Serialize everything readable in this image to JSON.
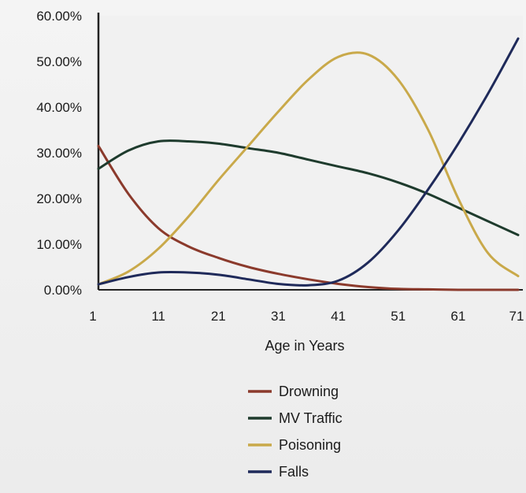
{
  "chart_data": {
    "type": "line",
    "title": "",
    "xlabel": "Age in Years",
    "ylabel": "",
    "x_ticks": [
      "1",
      "11",
      "21",
      "31",
      "41",
      "51",
      "61",
      "71"
    ],
    "y_ticks": [
      "0.00%",
      "10.00%",
      "20.00%",
      "30.00%",
      "40.00%",
      "50.00%",
      "60.00%"
    ],
    "xlim": [
      1,
      71
    ],
    "ylim": [
      0,
      60
    ],
    "grid": false,
    "legend_position": "bottom-center",
    "series": [
      {
        "name": "Drowning",
        "color": "#8b3a2c",
        "x": [
          1,
          6,
          11,
          16,
          21,
          26,
          31,
          36,
          41,
          46,
          51,
          56,
          61,
          66,
          71
        ],
        "y": [
          31.5,
          21,
          13.5,
          9.5,
          7,
          5,
          3.5,
          2.3,
          1.3,
          0.6,
          0.2,
          0.1,
          0,
          0,
          0
        ]
      },
      {
        "name": "MV Traffic",
        "color": "#1e3b2d",
        "x": [
          1,
          6,
          11,
          16,
          21,
          26,
          31,
          36,
          41,
          46,
          51,
          56,
          61,
          66,
          71
        ],
        "y": [
          26.5,
          30.5,
          32.5,
          32.5,
          32,
          31,
          30,
          28.5,
          27,
          25.5,
          23.5,
          21,
          18,
          15,
          12
        ]
      },
      {
        "name": "Poisoning",
        "color": "#c9a94a",
        "x": [
          1,
          6,
          11,
          16,
          21,
          26,
          31,
          36,
          41,
          46,
          51,
          56,
          61,
          66,
          71
        ],
        "y": [
          1.2,
          4,
          9,
          16,
          24,
          31.5,
          39,
          46,
          51,
          51.5,
          46,
          35,
          20,
          8,
          3
        ]
      },
      {
        "name": "Falls",
        "color": "#1f2a5a",
        "x": [
          1,
          6,
          11,
          16,
          21,
          26,
          31,
          36,
          41,
          46,
          51,
          56,
          61,
          66,
          71
        ],
        "y": [
          1.2,
          2.8,
          3.8,
          3.8,
          3.3,
          2.3,
          1.3,
          1.0,
          2.0,
          6,
          13,
          22,
          32,
          43,
          55
        ]
      }
    ]
  }
}
